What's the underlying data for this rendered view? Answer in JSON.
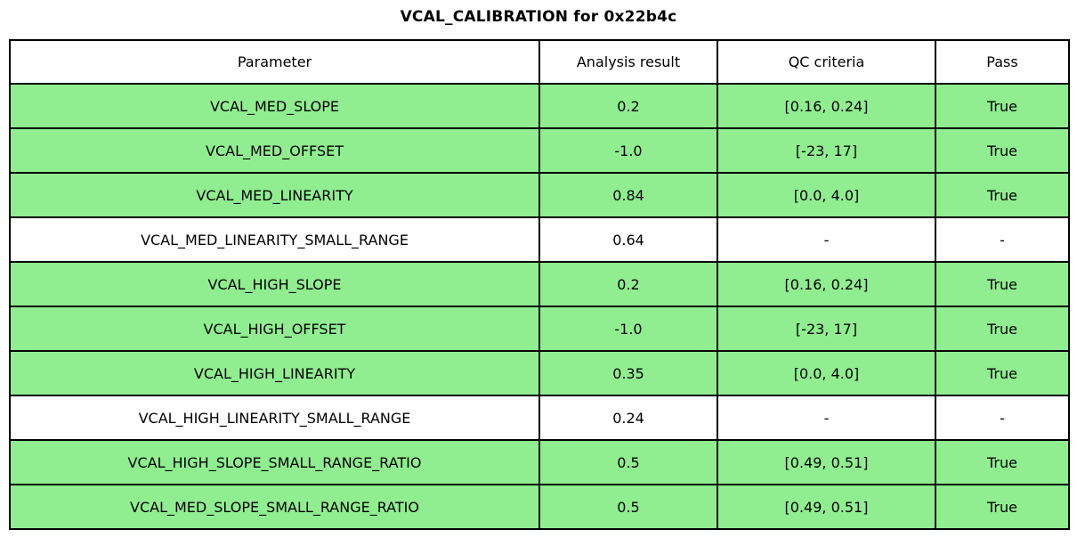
{
  "title": "VCAL_CALIBRATION for 0x22b4c",
  "colors": {
    "pass_green": "#90ee90",
    "row_white": "#ffffff",
    "border_black": "#000000"
  },
  "chart_data": {
    "type": "table",
    "title": "VCAL_CALIBRATION for 0x22b4c",
    "columns": [
      "Parameter",
      "Analysis result",
      "QC criteria",
      "Pass"
    ],
    "rows": [
      [
        "VCAL_MED_SLOPE",
        "0.2",
        "[0.16, 0.24]",
        "True"
      ],
      [
        "VCAL_MED_OFFSET",
        "-1.0",
        "[-23, 17]",
        "True"
      ],
      [
        "VCAL_MED_LINEARITY",
        "0.84",
        "[0.0, 4.0]",
        "True"
      ],
      [
        "VCAL_MED_LINEARITY_SMALL_RANGE",
        "0.64",
        "-",
        "-"
      ],
      [
        "VCAL_HIGH_SLOPE",
        "0.2",
        "[0.16, 0.24]",
        "True"
      ],
      [
        "VCAL_HIGH_OFFSET",
        "-1.0",
        "[-23, 17]",
        "True"
      ],
      [
        "VCAL_HIGH_LINEARITY",
        "0.35",
        "[0.0, 4.0]",
        "True"
      ],
      [
        "VCAL_HIGH_LINEARITY_SMALL_RANGE",
        "0.24",
        "-",
        "-"
      ],
      [
        "VCAL_HIGH_SLOPE_SMALL_RANGE_RATIO",
        "0.5",
        "[0.49, 0.51]",
        "True"
      ],
      [
        "VCAL_MED_SLOPE_SMALL_RANGE_RATIO",
        "0.5",
        "[0.49, 0.51]",
        "True"
      ]
    ],
    "row_highlight": [
      true,
      true,
      true,
      false,
      true,
      true,
      true,
      false,
      true,
      true
    ],
    "layout": {
      "legend": "none",
      "grid": "full-cell-borders",
      "highlight_meaning": "green row = QC passed, white row = no QC criteria"
    }
  }
}
